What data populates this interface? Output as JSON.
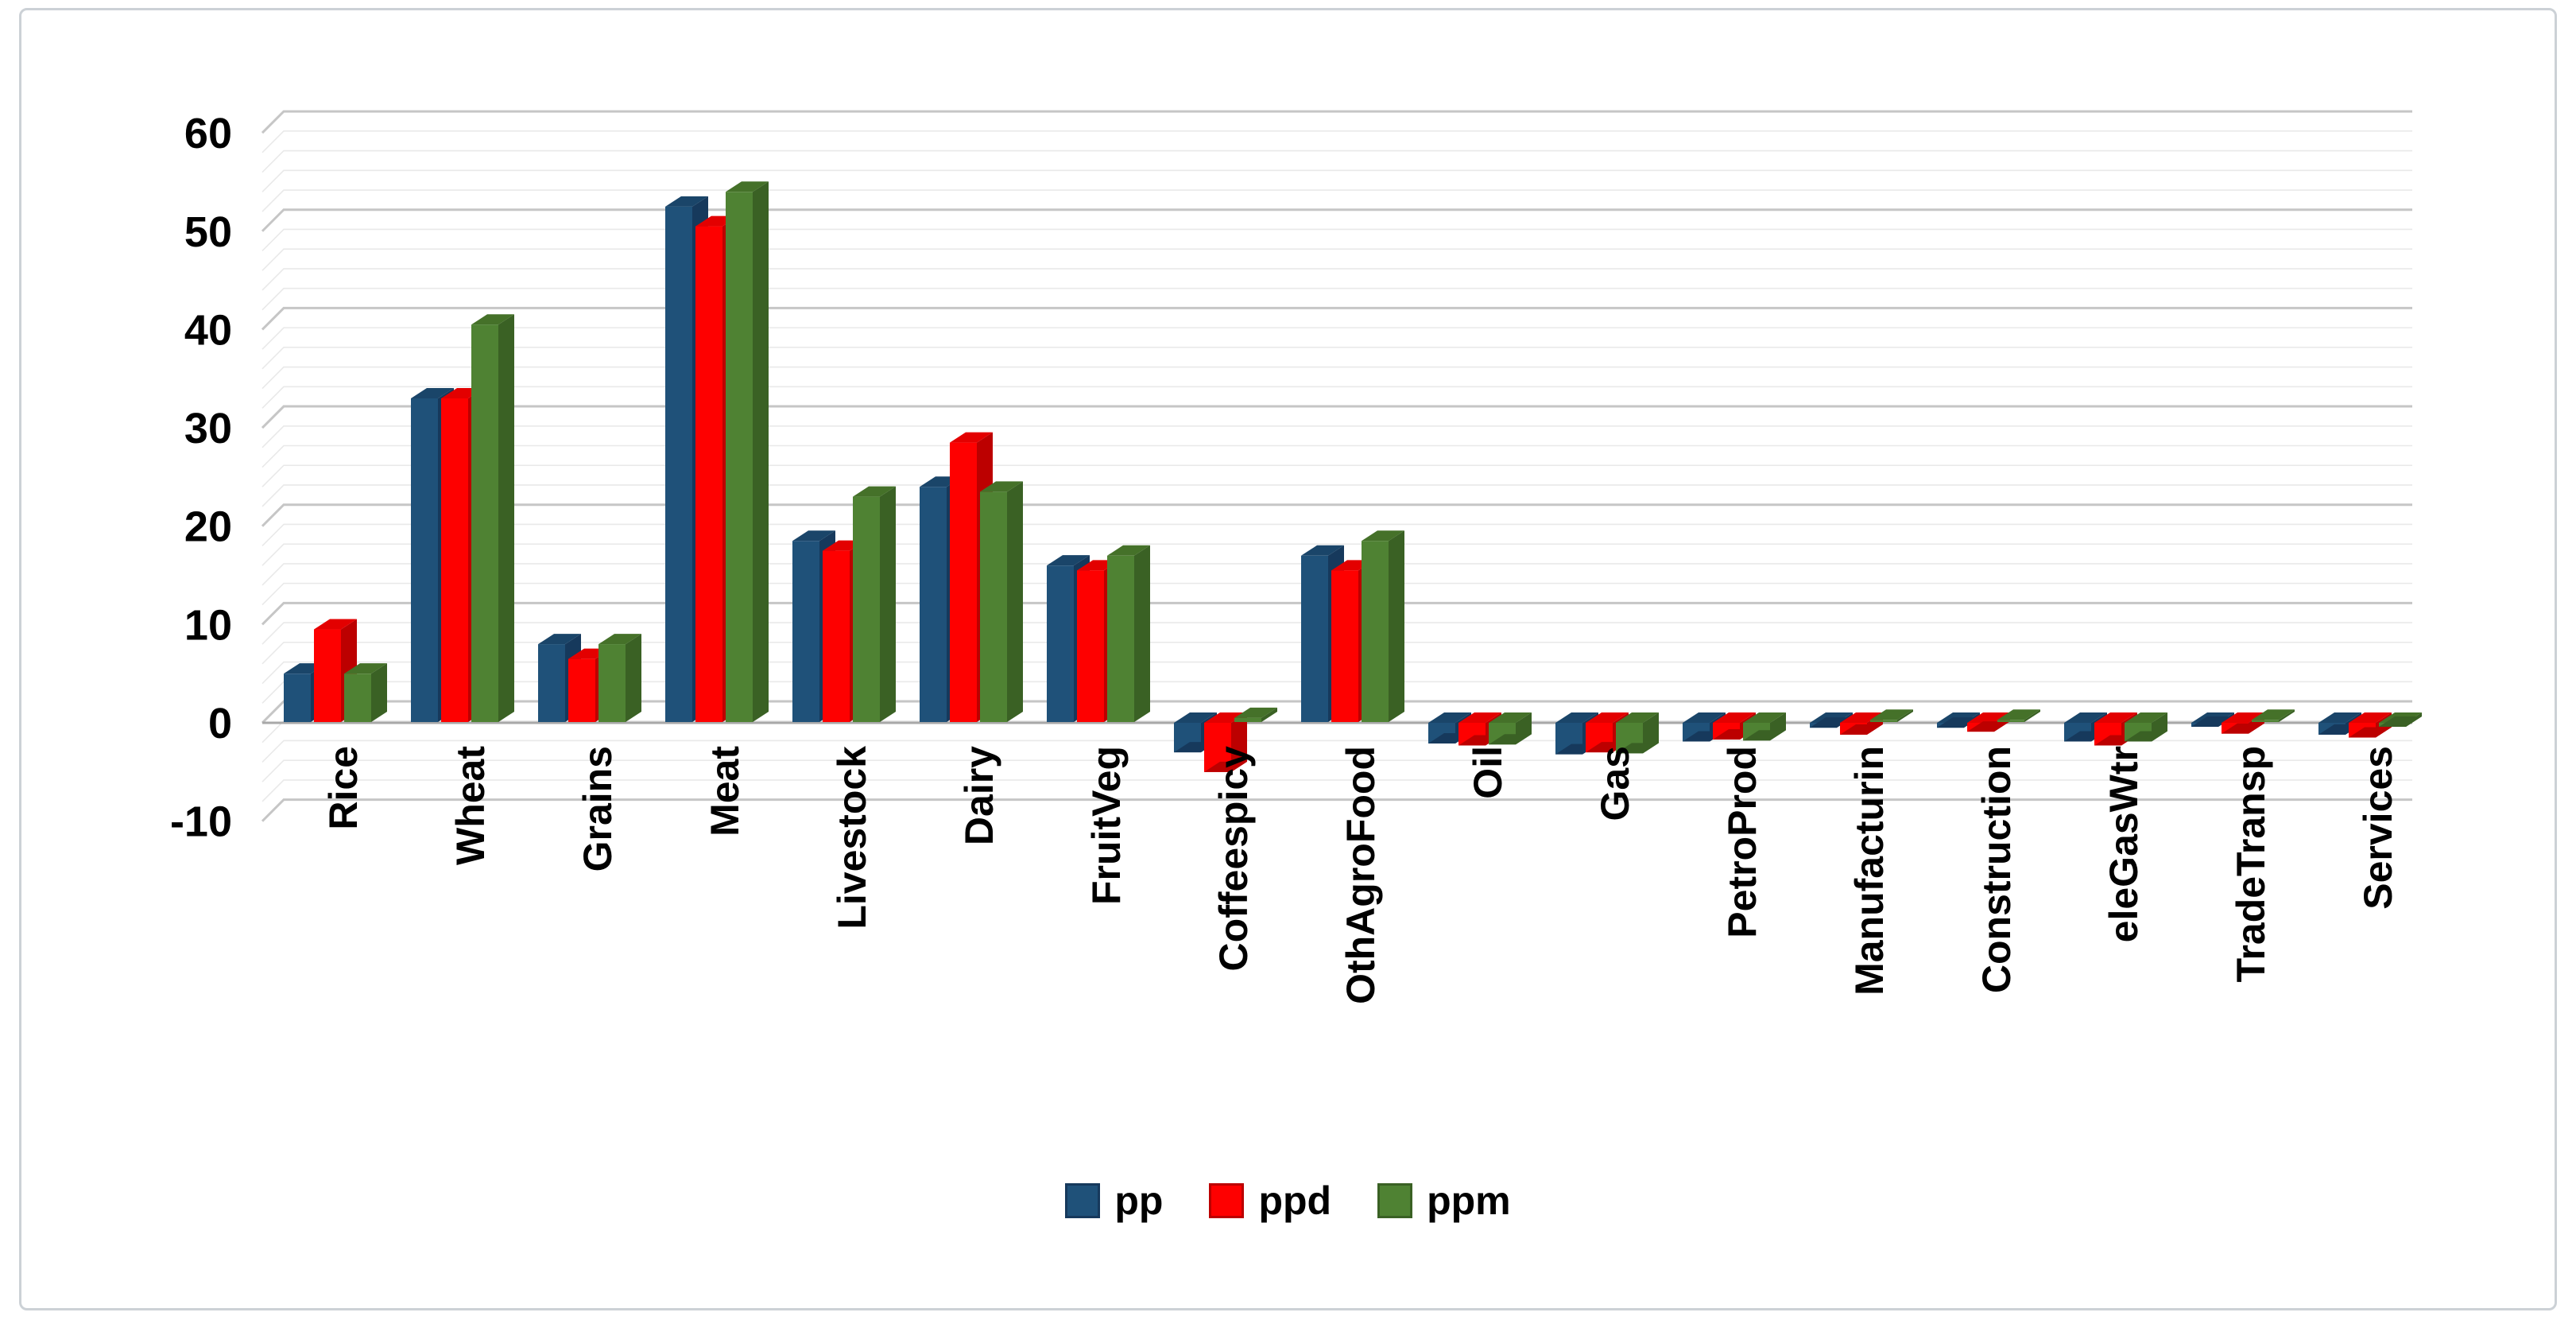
{
  "chart_data": {
    "type": "bar",
    "style": "3d-clustered-column",
    "title": "",
    "xlabel": "",
    "ylabel": "",
    "categories": [
      "Rice",
      "Wheat",
      "Grains",
      "Meat",
      "Livestock",
      "Dairy",
      "FruitVeg",
      "Coffeespicy",
      "OthAgroFood",
      "Oil",
      "Gas",
      "PetroProd",
      "Manufacturin",
      "Construction",
      "eleGasWtr",
      "TradeTransp",
      "Services"
    ],
    "series": [
      {
        "name": "pp",
        "color": "#1F5179",
        "side_color": "#16395C",
        "cap_color": "#1A4569",
        "values": [
          5,
          33,
          8,
          52.5,
          18.5,
          24,
          16,
          -3,
          17,
          -2.1,
          -3.2,
          -1.9,
          -0.5,
          -0.5,
          -1.9,
          -0.4,
          -1.2
        ]
      },
      {
        "name": "ppd",
        "color": "#FE0000",
        "side_color": "#BC0000",
        "cap_color": "#E30000",
        "values": [
          9.5,
          33,
          6.5,
          50.5,
          17.5,
          28.5,
          15.5,
          -5,
          15.5,
          -2.3,
          -3,
          -1.7,
          -1.2,
          -0.9,
          -2.3,
          -1.1,
          -1.5
        ]
      },
      {
        "name": "ppm",
        "color": "#4F8233",
        "side_color": "#3A6124",
        "cap_color": "#457129",
        "values": [
          5,
          40.5,
          8,
          54,
          23,
          23.5,
          17,
          0.5,
          18.5,
          -2.2,
          -3.1,
          -1.8,
          0.3,
          0.3,
          -1.9,
          0.3,
          -0.4
        ]
      }
    ],
    "ylim": [
      -10,
      60
    ],
    "yticks": [
      60,
      50,
      40,
      30,
      20,
      10,
      0,
      -10
    ],
    "grid": {
      "minor_step": 2,
      "major_step": 10,
      "minor_color": "#e9e9e9",
      "major_color": "#c6c6c6",
      "zero_color": "#a8a8a8"
    },
    "legend_position": "bottom",
    "axis_text_color": "#000000"
  }
}
